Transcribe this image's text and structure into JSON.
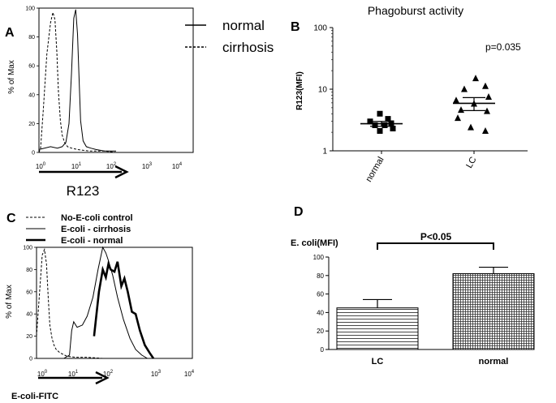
{
  "chart_data": [
    {
      "panel": "A",
      "type": "line",
      "subtype": "flow-histogram",
      "title": "",
      "xlabel": "R123",
      "ylabel": "% of Max",
      "x_scale": "log",
      "xlim": [
        1,
        10000
      ],
      "ylim": [
        0,
        100
      ],
      "x_ticks": [
        "10^0",
        "10^1",
        "10^2",
        "10^3",
        "10^4"
      ],
      "y_ticks": [
        "0",
        "20",
        "40",
        "60",
        "80",
        "100"
      ],
      "legend": [
        "normal",
        "cirrhosis"
      ],
      "series": [
        {
          "name": "normal",
          "style": "solid",
          "x": [
            1,
            2,
            3,
            4,
            5,
            6,
            7,
            8,
            9,
            10,
            11,
            12,
            14,
            17,
            22,
            30,
            50,
            100
          ],
          "y": [
            2,
            4,
            3,
            4,
            7,
            20,
            55,
            93,
            99,
            82,
            50,
            22,
            8,
            4,
            3,
            2,
            1,
            1
          ]
        },
        {
          "name": "cirrhosis",
          "style": "dashed",
          "x": [
            1,
            1.1,
            1.3,
            1.6,
            2,
            2.3,
            2.6,
            2.9,
            3.2,
            3.6,
            4,
            4.6,
            5.5,
            7,
            10,
            20,
            50,
            100
          ],
          "y": [
            0,
            3,
            30,
            68,
            90,
            97,
            92,
            70,
            42,
            22,
            12,
            7,
            4,
            3,
            2,
            1,
            1,
            0
          ]
        }
      ]
    },
    {
      "panel": "B",
      "type": "scatter",
      "title": "Phagoburst activity",
      "xlabel": "",
      "ylabel": "R123(MFI)",
      "y_scale": "log",
      "ylim": [
        1,
        100
      ],
      "y_ticks": [
        "1",
        "10",
        "100"
      ],
      "categories": [
        "normal",
        "LC"
      ],
      "annotation": "p=0.035",
      "series": [
        {
          "name": "normal",
          "marker": "square",
          "values": [
            4.0,
            3.3,
            3.0,
            2.8,
            2.6,
            2.6,
            2.3,
            2.1
          ],
          "mean": 2.75,
          "sem_low": 2.5,
          "sem_high": 3.0
        },
        {
          "name": "LC",
          "marker": "triangle",
          "values": [
            15.0,
            11.2,
            10.0,
            7.5,
            6.6,
            5.8,
            4.6,
            4.4,
            3.4,
            2.4,
            2.1
          ],
          "mean": 5.9,
          "sem_low": 4.5,
          "sem_high": 7.3
        }
      ]
    },
    {
      "panel": "C",
      "type": "line",
      "subtype": "flow-histogram",
      "title": "",
      "xlabel": "E-coli-FITC",
      "ylabel": "% of Max",
      "x_scale": "log",
      "xlim": [
        1,
        10000
      ],
      "ylim": [
        0,
        100
      ],
      "x_ticks": [
        "10^0",
        "10^1",
        "10^2",
        "10^3",
        "10^4"
      ],
      "y_ticks": [
        "0",
        "20",
        "40",
        "60",
        "80",
        "100"
      ],
      "legend": [
        "No-E-coli control",
        "E-coli - cirrhosis",
        "E-coli - normal"
      ],
      "series": [
        {
          "name": "No-E-coli control",
          "style": "dashed",
          "x": [
            1,
            1.2,
            1.4,
            1.6,
            1.8,
            2.0,
            2.2,
            2.5,
            2.8,
            3.2,
            4,
            6,
            10,
            20,
            50,
            100
          ],
          "y": [
            20,
            60,
            93,
            98,
            85,
            55,
            30,
            18,
            12,
            8,
            5,
            2,
            1,
            1,
            0,
            0
          ]
        },
        {
          "name": "E-coli - cirrhosis",
          "style": "solid",
          "x": [
            5,
            7,
            8,
            9,
            11,
            15,
            20,
            28,
            38,
            50,
            60,
            70,
            90,
            120,
            170,
            250,
            350,
            500,
            700
          ],
          "y": [
            0,
            3,
            25,
            33,
            28,
            30,
            38,
            55,
            80,
            100,
            95,
            88,
            75,
            55,
            35,
            18,
            8,
            3,
            0
          ]
        },
        {
          "name": "E-coli - normal",
          "style": "bold",
          "x": [
            30,
            40,
            50,
            60,
            70,
            80,
            100,
            120,
            150,
            180,
            220,
            280,
            350,
            450,
            600,
            800,
            1000
          ],
          "y": [
            20,
            60,
            80,
            73,
            85,
            80,
            78,
            87,
            65,
            72,
            60,
            42,
            40,
            25,
            12,
            5,
            0
          ]
        }
      ]
    },
    {
      "panel": "D",
      "type": "bar",
      "title": "",
      "xlabel": "",
      "ylabel": "E. coli(MFI)",
      "ylim": [
        0,
        100
      ],
      "y_ticks": [
        "0",
        "20",
        "40",
        "60",
        "80",
        "100"
      ],
      "categories": [
        "LC",
        "normal"
      ],
      "values": [
        45,
        82
      ],
      "errors": [
        9,
        7
      ],
      "patterns": [
        "horizontal-lines",
        "grid"
      ],
      "annotation": "P<0.05"
    }
  ],
  "labels": {
    "panel_a": "A",
    "panel_b": "B",
    "panel_c": "C",
    "panel_d": "D"
  }
}
